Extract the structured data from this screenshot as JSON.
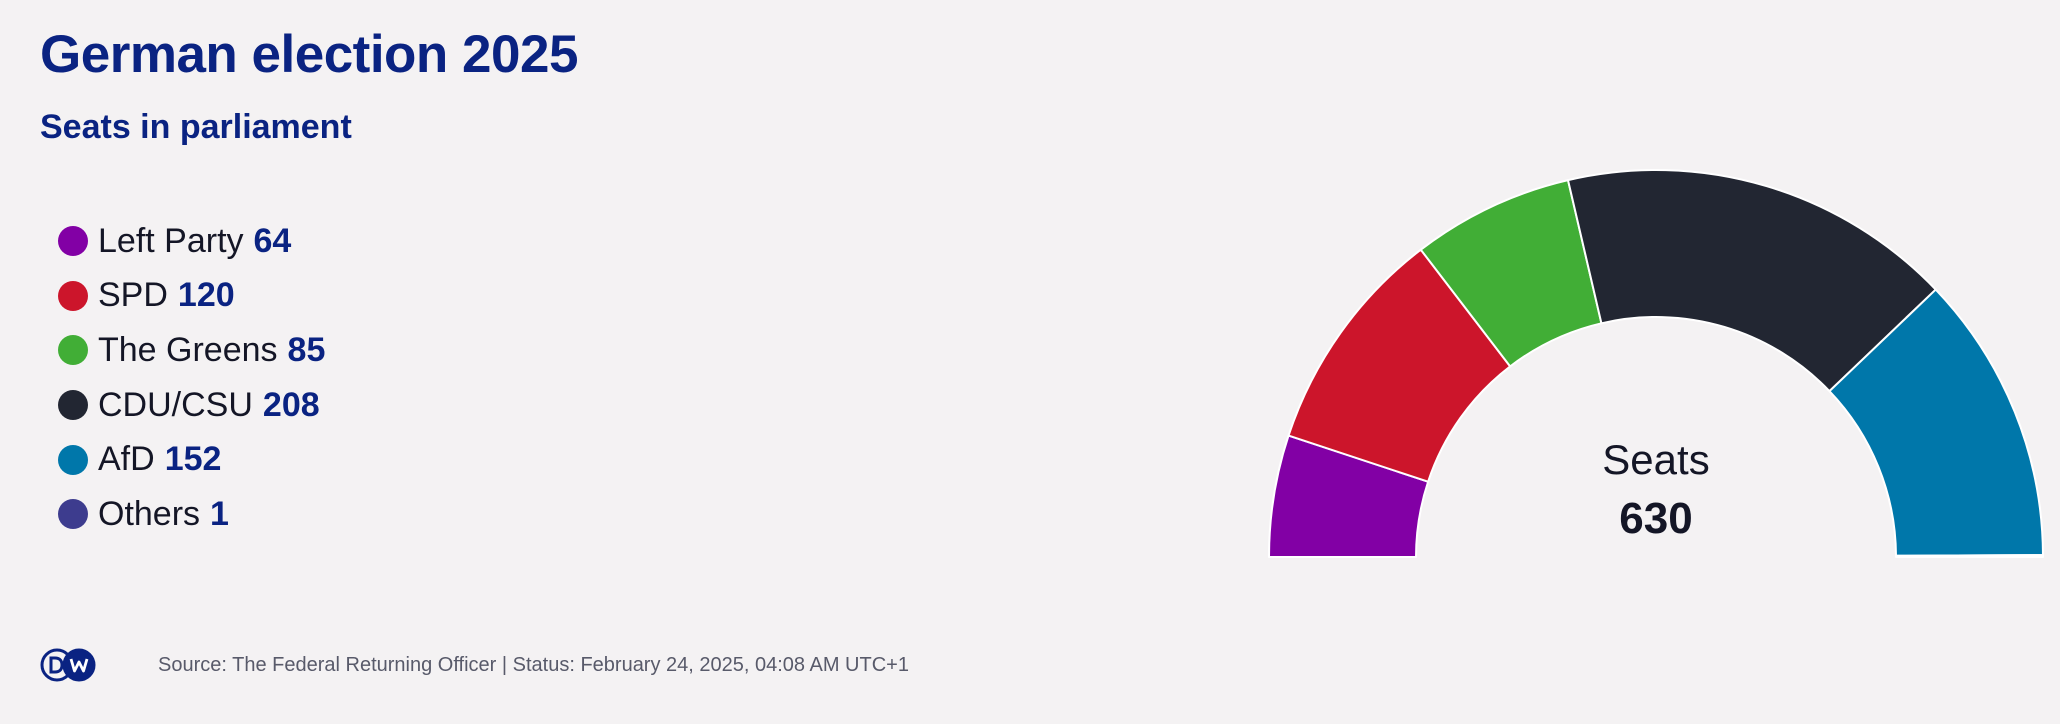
{
  "header": {
    "title": "German election 2025",
    "subtitle": "Seats in parliament"
  },
  "footer": {
    "logo_text": "DW",
    "source": "Source: The Federal Returning Officer | Status: February 24, 2025, 04:08 AM UTC+1"
  },
  "chart_data": {
    "type": "pie",
    "variant": "half-donut parliament chart",
    "title": "German election 2025",
    "subtitle": "Seats in parliament",
    "center_label": "Seats",
    "total": 630,
    "legend_position": "left",
    "series": [
      {
        "name": "Left Party",
        "value": 64,
        "color": "#8200a5"
      },
      {
        "name": "SPD",
        "value": 120,
        "color": "#cc152b"
      },
      {
        "name": "The Greens",
        "value": 85,
        "color": "#41ae36"
      },
      {
        "name": "CDU/CSU",
        "value": 208,
        "color": "#222632"
      },
      {
        "name": "AfD",
        "value": 152,
        "color": "#0077aa"
      },
      {
        "name": "Others",
        "value": 1,
        "color": "#3d3c8e"
      }
    ]
  }
}
